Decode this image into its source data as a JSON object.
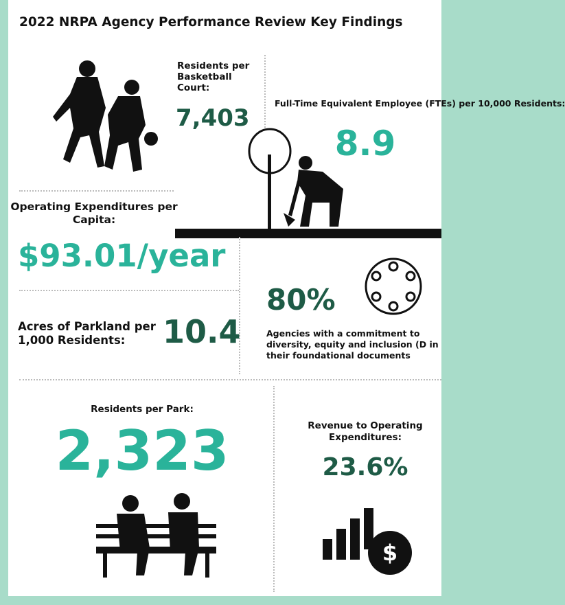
{
  "header": {
    "title": "2022 NRPA Agency Performance Review Key Findings"
  },
  "findings": {
    "basketball": {
      "label": "Residents per Basketball Court:",
      "value": "7,403"
    },
    "ftes": {
      "label": "Full-Time Equivalent Employee (FTEs) per 10,000 Residents:",
      "value": "8.9"
    },
    "operating": {
      "label": "Operating Expenditures per Capita:",
      "value": "$93.01/year"
    },
    "acres": {
      "label": "Acres of Parkland per 1,000 Residents:",
      "value": "10.4"
    },
    "dei": {
      "value": "80%",
      "label": "Agencies with a commitment to diversity, equity and inclusion (D in their foundational documents"
    },
    "park": {
      "label": "Residents per Park:",
      "value": "2,323"
    },
    "revenue": {
      "label": "Revenue to Operating Expenditures:",
      "value": "23.6%"
    }
  }
}
